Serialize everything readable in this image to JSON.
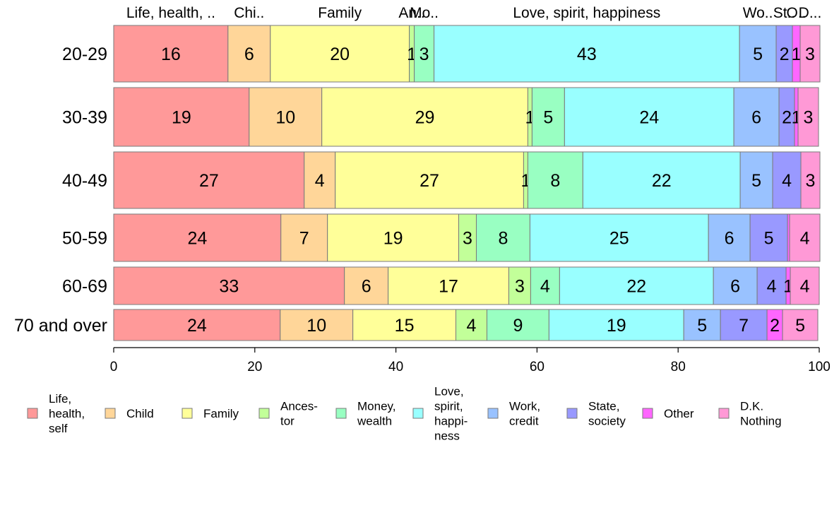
{
  "chart_data": {
    "type": "bar",
    "orientation": "horizontal",
    "stacked": true,
    "xlim": [
      0,
      100
    ],
    "x_ticks": [
      "0",
      "20",
      "40",
      "60",
      "80",
      "100"
    ],
    "categories": [
      "20-29",
      "30-39",
      "40-49",
      "50-59",
      "60-69",
      "70 and over"
    ],
    "top_labels": [
      {
        "text": "Life, health, ..",
        "series": 0
      },
      {
        "text": "Chi..",
        "series": 1
      },
      {
        "text": "Family",
        "series": 2
      },
      {
        "text": "An..",
        "series": 3
      },
      {
        "text": "Mo..",
        "series": 4
      },
      {
        "text": "Love, spirit, happiness",
        "series": 5
      },
      {
        "text": "Wo..",
        "series": 6
      },
      {
        "text": "St..",
        "series": 7
      },
      {
        "text": "O..",
        "series": 8
      },
      {
        "text": "D...",
        "series": 9
      }
    ],
    "series": [
      {
        "name": "Life, health, self",
        "legend_lines": [
          "Life,",
          "health,",
          "self"
        ],
        "color": "#ff9999",
        "values": [
          16.2,
          19.2,
          27.0,
          23.7,
          32.7,
          23.6
        ],
        "labels": [
          "16",
          "19",
          "27",
          "24",
          "33",
          "24"
        ]
      },
      {
        "name": "Child",
        "legend_lines": [
          "Child"
        ],
        "color": "#ffd699",
        "values": [
          6.0,
          10.3,
          4.4,
          6.6,
          6.2,
          10.3
        ],
        "labels": [
          "6",
          "10",
          "4",
          "7",
          "6",
          "10"
        ]
      },
      {
        "name": "Family",
        "legend_lines": [
          "Family"
        ],
        "color": "#ffff99",
        "values": [
          19.7,
          29.2,
          26.7,
          18.6,
          17.1,
          14.6
        ],
        "labels": [
          "20",
          "29",
          "27",
          "19",
          "17",
          "15"
        ]
      },
      {
        "name": "Ancestor",
        "legend_lines": [
          "Ances-",
          "tor"
        ],
        "color": "#c2ff99",
        "values": [
          0.7,
          0.6,
          0.6,
          2.5,
          3.1,
          4.4
        ],
        "labels": [
          "1",
          "1",
          "1",
          "3",
          "3",
          "4"
        ]
      },
      {
        "name": "Money, wealth",
        "legend_lines": [
          "Money,",
          "wealth"
        ],
        "color": "#99ffc2",
        "values": [
          2.8,
          4.6,
          7.8,
          7.6,
          4.1,
          8.8
        ],
        "labels": [
          "3",
          "5",
          "8",
          "8",
          "4",
          "9"
        ]
      },
      {
        "name": "Love, spirit, happiness",
        "legend_lines": [
          "Love,",
          "spirit,",
          "happi-",
          "ness"
        ],
        "color": "#99ffff",
        "values": [
          43.3,
          24.0,
          22.3,
          25.3,
          21.8,
          19.1
        ],
        "labels": [
          "43",
          "24",
          "22",
          "25",
          "22",
          "19"
        ]
      },
      {
        "name": "Work, credit",
        "legend_lines": [
          "Work,",
          "credit"
        ],
        "color": "#99c2ff",
        "values": [
          5.2,
          6.4,
          4.6,
          5.9,
          6.2,
          5.2
        ],
        "labels": [
          "5",
          "6",
          "5",
          "6",
          "6",
          "5"
        ]
      },
      {
        "name": "State, society",
        "legend_lines": [
          "State,",
          "society"
        ],
        "color": "#9999ff",
        "values": [
          2.3,
          2.2,
          4.0,
          5.3,
          4.1,
          6.6
        ],
        "labels": [
          "2",
          "2",
          "4",
          "5",
          "4",
          "7"
        ]
      },
      {
        "name": "Other",
        "legend_lines": [
          "Other"
        ],
        "color": "#ff66ff",
        "values": [
          1.1,
          0.5,
          0.0,
          0.3,
          0.6,
          2.2
        ],
        "labels": [
          "1",
          "1",
          "",
          "",
          "1",
          "2"
        ]
      },
      {
        "name": "D.K. Nothing",
        "legend_lines": [
          "D.K.",
          "Nothing"
        ],
        "color": "#ff99d6",
        "values": [
          2.8,
          2.9,
          2.7,
          4.3,
          4.1,
          5.0
        ],
        "labels": [
          "3",
          "3",
          "3",
          "4",
          "4",
          "5"
        ]
      }
    ]
  }
}
